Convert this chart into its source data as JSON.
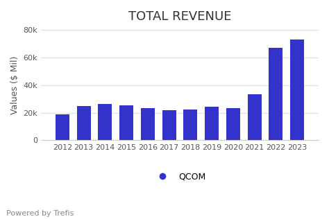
{
  "title": "TOTAL REVENUE",
  "ylabel": "Values ($ Mil)",
  "xlabel": "",
  "legend_label": "QCOM",
  "legend_color": "#3333cc",
  "bar_color": "#3333cc",
  "background_color": "#ffffff",
  "footer_text": "Powered by Trefis",
  "years": [
    2012,
    2013,
    2014,
    2015,
    2016,
    2017,
    2018,
    2019,
    2020,
    2021,
    2022,
    2023
  ],
  "values": [
    19000,
    25000,
    26500,
    25500,
    23500,
    22000,
    22500,
    24500,
    23500,
    33500,
    67000,
    73000
  ],
  "ylim": [
    0,
    80000
  ],
  "yticks": [
    0,
    20000,
    40000,
    60000,
    80000
  ],
  "ytick_labels": [
    "0",
    "20k",
    "40k",
    "60k",
    "80k"
  ],
  "title_fontsize": 13,
  "axis_fontsize": 9,
  "tick_fontsize": 8,
  "footer_fontsize": 8
}
